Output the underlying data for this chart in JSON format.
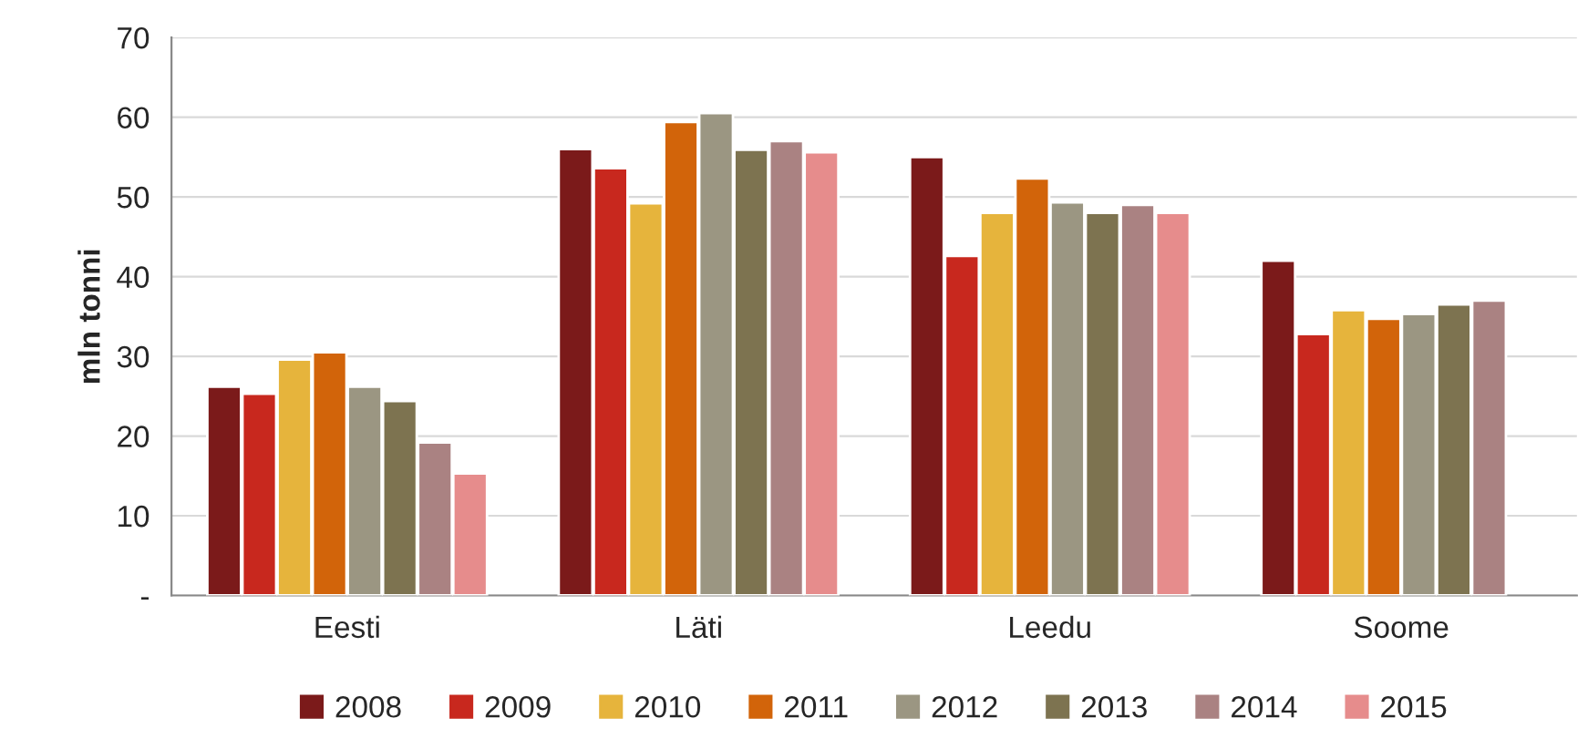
{
  "chart_data": {
    "type": "bar",
    "ylabel": "mln tonni",
    "categories": [
      "Eesti",
      "Läti",
      "Leedu",
      "Soome"
    ],
    "series": [
      {
        "name": "2008",
        "color": "#7b1a1a",
        "values": [
          26.2,
          56,
          55,
          42
        ]
      },
      {
        "name": "2009",
        "color": "#c8281e",
        "values": [
          25.3,
          53.6,
          42.6,
          32.8
        ]
      },
      {
        "name": "2010",
        "color": "#e6b43c",
        "values": [
          29.6,
          49.2,
          48,
          35.8
        ]
      },
      {
        "name": "2011",
        "color": "#d2640a",
        "values": [
          30.5,
          59.4,
          52.3,
          34.7
        ]
      },
      {
        "name": "2012",
        "color": "#9b9682",
        "values": [
          26.2,
          60.5,
          49.3,
          35.3
        ]
      },
      {
        "name": "2013",
        "color": "#7d7350",
        "values": [
          24.4,
          55.9,
          48,
          36.5
        ]
      },
      {
        "name": "2014",
        "color": "#aa8282",
        "values": [
          19.2,
          57,
          49,
          37
        ]
      },
      {
        "name": "2015",
        "color": "#e68c8c",
        "values": [
          15.3,
          55.6,
          48,
          null
        ]
      }
    ],
    "ylim": [
      0,
      70
    ],
    "yticks": [
      {
        "value": 0,
        "label": "-"
      },
      10,
      20,
      30,
      40,
      50,
      60,
      70
    ],
    "grid": "y",
    "legend": "bottom"
  }
}
